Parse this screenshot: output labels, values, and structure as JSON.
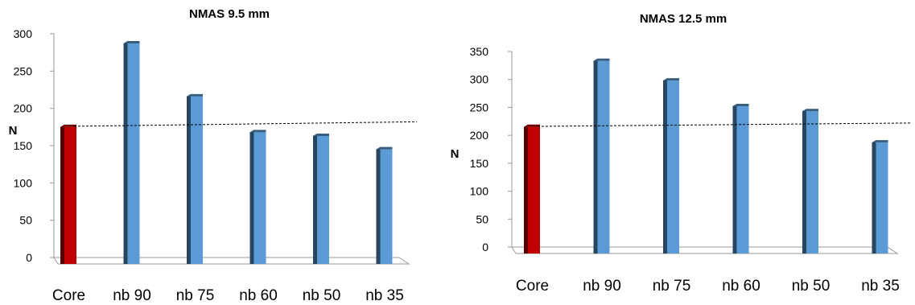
{
  "chart_data": [
    {
      "type": "bar",
      "title": "NMAS 9.5 mm",
      "ylabel": "N",
      "xlabel": "",
      "categories": [
        "Core",
        "nb 90",
        "nb 75",
        "nb 60",
        "nb 50",
        "nb 35"
      ],
      "values": [
        175,
        287,
        216,
        168,
        163,
        145
      ],
      "ylim": [
        0,
        300
      ],
      "yticks": [
        "0",
        "50",
        "100",
        "150",
        "200",
        "250",
        "300"
      ],
      "reference_line": {
        "style": "dashed",
        "from_value": 176,
        "to_value": 182
      },
      "colors": {
        "core": "#c00000",
        "bars": "#5b9bd5"
      },
      "legend": "none",
      "grid": false
    },
    {
      "type": "bar",
      "title": "NMAS 12.5 mm",
      "ylabel": "N",
      "xlabel": "",
      "categories": [
        "Core",
        "nb 90",
        "nb 75",
        "nb 60",
        "nb 50",
        "nb 35"
      ],
      "values": [
        215,
        333,
        298,
        252,
        243,
        187
      ],
      "ylim": [
        0,
        350
      ],
      "yticks": [
        "0",
        "50",
        "100",
        "150",
        "200",
        "250",
        "300",
        "350"
      ],
      "reference_line": {
        "style": "dashed",
        "from_value": 216,
        "to_value": 222
      },
      "colors": {
        "core": "#c00000",
        "bars": "#5b9bd5"
      },
      "legend": "none",
      "grid": false
    }
  ]
}
